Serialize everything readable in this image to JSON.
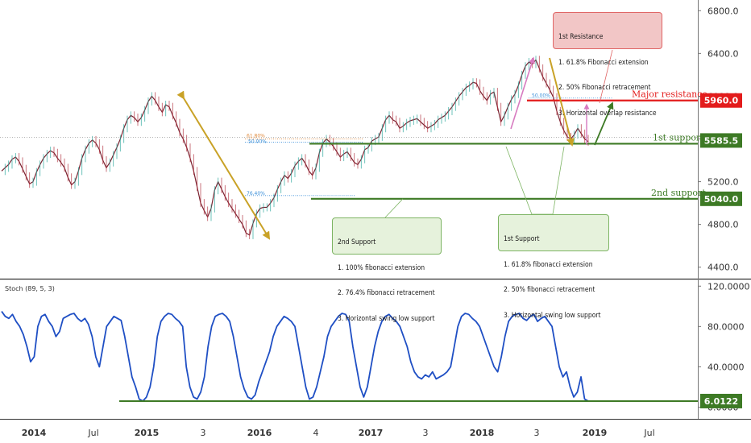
{
  "chart_data": [
    {
      "type": "line",
      "panel": "price",
      "yticks": [
        "6800.0",
        "6400.0",
        "6000.0",
        "5600.0",
        "5200.0",
        "4800.0",
        "4400.0"
      ],
      "ytick_values": [
        6800,
        6400,
        6000,
        5600,
        5200,
        4800,
        4400
      ],
      "ylim": [
        4300,
        6900
      ],
      "xticks": [
        "2014",
        "Jul",
        "2015",
        "3",
        "2016",
        "4",
        "2017",
        "3",
        "2018",
        "3",
        "2019",
        "Jul"
      ],
      "levels": [
        {
          "name": "Major resistance",
          "value": 5960,
          "label": "5960.0",
          "color": "#e31c1c"
        },
        {
          "name": "1st support",
          "value": 5585.5,
          "label": "5585.5",
          "color": "#3d7a25"
        },
        {
          "name": "2nd support",
          "value": 5040,
          "label": "5040.0",
          "color": "#3d7a25"
        }
      ],
      "fib_labels": [
        "61.80%",
        "50.00%",
        "76.40%"
      ],
      "fib_label_major": "50.00%",
      "series": [
        {
          "values": [
            5300,
            5330,
            5360,
            5410,
            5430,
            5390,
            5320,
            5250,
            5180,
            5200,
            5290,
            5360,
            5420,
            5460,
            5490,
            5470,
            5420,
            5380,
            5330,
            5240,
            5170,
            5200,
            5300,
            5420,
            5500,
            5560,
            5590,
            5560,
            5500,
            5400,
            5330,
            5380,
            5450,
            5520,
            5600,
            5700,
            5780,
            5820,
            5800,
            5760,
            5800,
            5870,
            5950,
            6000,
            5960,
            5900,
            5850,
            5920,
            5900,
            5820,
            5750,
            5660,
            5600,
            5520,
            5420,
            5300,
            5150,
            5000,
            4930,
            4870,
            4950,
            5120,
            5200,
            5130,
            5060,
            5000,
            4950,
            4900,
            4850,
            4800,
            4720,
            4700,
            4810,
            4900,
            4950,
            4960,
            4960,
            5000,
            5050,
            5130,
            5200,
            5260,
            5230,
            5280,
            5350,
            5390,
            5420,
            5370,
            5300,
            5260,
            5330,
            5470,
            5560,
            5600,
            5570,
            5530,
            5480,
            5430,
            5460,
            5480,
            5430,
            5380,
            5360,
            5410,
            5500,
            5520,
            5580,
            5600,
            5620,
            5700,
            5780,
            5820,
            5780,
            5760,
            5700,
            5720,
            5750,
            5770,
            5780,
            5790,
            5760,
            5730,
            5700,
            5720,
            5740,
            5780,
            5800,
            5820,
            5860,
            5900,
            5950,
            6000,
            6040,
            6080,
            6100,
            6130,
            6120,
            6050,
            6000,
            5960,
            6020,
            6040,
            5900,
            5760,
            5820,
            5900,
            5970,
            6020,
            6100,
            6200,
            6280,
            6320,
            6300,
            6340,
            6260,
            6180,
            6120,
            6060,
            5990,
            5860,
            5760,
            5680,
            5620,
            5600,
            5640,
            5700,
            5650,
            5600,
            5575
          ]
        }
      ]
    },
    {
      "type": "line",
      "panel": "stochastic",
      "label": "Stoch (89, 5, 3)",
      "yticks": [
        "120.0000",
        "80.0000",
        "40.0000",
        "0.0000"
      ],
      "ytick_values": [
        120,
        80,
        40,
        0
      ],
      "ylim": [
        -10,
        125
      ],
      "current_value": "6.0122",
      "support_level": 6.0122,
      "series": [
        {
          "values": [
            95,
            90,
            88,
            92,
            85,
            80,
            72,
            60,
            45,
            50,
            80,
            90,
            92,
            85,
            80,
            70,
            75,
            88,
            90,
            92,
            93,
            88,
            85,
            88,
            82,
            70,
            50,
            40,
            60,
            80,
            85,
            90,
            88,
            86,
            70,
            50,
            30,
            20,
            8,
            6,
            10,
            20,
            40,
            70,
            85,
            90,
            93,
            92,
            88,
            85,
            80,
            40,
            20,
            10,
            8,
            15,
            30,
            60,
            80,
            90,
            92,
            93,
            90,
            85,
            70,
            50,
            30,
            18,
            10,
            8,
            12,
            25,
            35,
            45,
            55,
            70,
            80,
            85,
            90,
            88,
            85,
            80,
            60,
            40,
            20,
            8,
            10,
            20,
            35,
            50,
            70,
            80,
            85,
            90,
            93,
            92,
            85,
            60,
            40,
            20,
            10,
            20,
            40,
            60,
            75,
            85,
            90,
            92,
            88,
            85,
            80,
            70,
            60,
            45,
            35,
            30,
            28,
            32,
            30,
            35,
            28,
            30,
            32,
            35,
            40,
            60,
            80,
            90,
            93,
            92,
            88,
            85,
            80,
            70,
            60,
            50,
            40,
            35,
            50,
            70,
            85,
            90,
            92,
            93,
            88,
            86,
            90,
            92,
            85,
            88,
            90,
            85,
            80,
            60,
            40,
            30,
            35,
            20,
            10,
            15,
            30,
            8,
            6
          ]
        }
      ]
    }
  ],
  "annotations": {
    "resistance_box": {
      "title": "1st Resistance",
      "lines": [
        "1. 61.8% Fibonacci extension",
        "2. 50% Fibonacci retracement",
        "3. Horizontal overlap resistance"
      ]
    },
    "support1_box": {
      "title": "1st Support",
      "lines": [
        "1. 61.8% fibonacci extension",
        "2. 50% fibonacci retracement",
        "3. Horizontal swing low support"
      ]
    },
    "support2_box": {
      "title": "2nd Support",
      "lines": [
        "1. 100% fibonacci extension",
        "2. 76.4% fibonacci retracement",
        "3. Horizontal swing low support"
      ]
    }
  },
  "colors": {
    "price_up": "#26a69a",
    "price_down": "#b2323f",
    "stoch_line": "#1f4fc4",
    "support": "#3d7a25",
    "resistance": "#e31c1c",
    "arrow": "#c9a227",
    "pink_arrow": "#d77bc0"
  }
}
